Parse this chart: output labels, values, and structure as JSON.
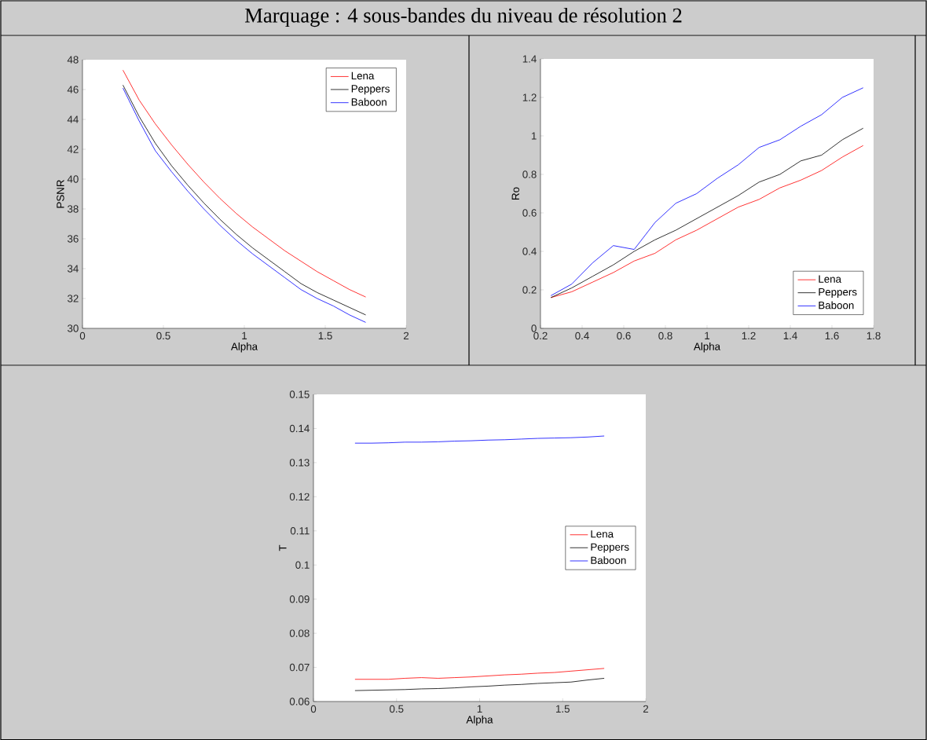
{
  "chart_data": [
    {
      "type": "line",
      "title": "Marquage : 4 sous-bandes du niveau de résolution 2",
      "xlabel": "Alpha",
      "ylabel": "PSNR",
      "x": [
        0.25,
        0.35,
        0.45,
        0.55,
        0.65,
        0.75,
        0.85,
        0.95,
        1.05,
        1.15,
        1.25,
        1.35,
        1.45,
        1.55,
        1.65,
        1.75
      ],
      "series": [
        {
          "name": "Lena",
          "color": "#ff0000",
          "values": [
            47.3,
            45.3,
            43.7,
            42.3,
            41.0,
            39.8,
            38.7,
            37.7,
            36.8,
            36.0,
            35.2,
            34.5,
            33.8,
            33.2,
            32.6,
            32.1
          ]
        },
        {
          "name": "Peppers",
          "color": "#000000",
          "values": [
            46.3,
            44.2,
            42.4,
            40.9,
            39.6,
            38.4,
            37.3,
            36.3,
            35.4,
            34.6,
            33.8,
            33.0,
            32.4,
            31.9,
            31.4,
            30.9
          ]
        },
        {
          "name": "Baboon",
          "color": "#0000ff",
          "values": [
            46.1,
            43.9,
            41.9,
            40.5,
            39.2,
            38.0,
            36.9,
            35.9,
            35.0,
            34.2,
            33.4,
            32.6,
            32.0,
            31.5,
            30.9,
            30.4
          ]
        }
      ],
      "xlim": [
        0,
        2
      ],
      "ylim": [
        30,
        48
      ],
      "xticks": [
        0,
        0.5,
        1,
        1.5,
        2
      ],
      "yticks": [
        30,
        32,
        34,
        36,
        38,
        40,
        42,
        44,
        46,
        48
      ],
      "legend": "top right"
    },
    {
      "type": "line",
      "xlabel": "Alpha",
      "ylabel": "Ro",
      "x": [
        0.25,
        0.35,
        0.45,
        0.55,
        0.65,
        0.75,
        0.85,
        0.95,
        1.05,
        1.15,
        1.25,
        1.35,
        1.45,
        1.55,
        1.65,
        1.75
      ],
      "series": [
        {
          "name": "Lena",
          "color": "#ff0000",
          "values": [
            0.16,
            0.19,
            0.24,
            0.29,
            0.35,
            0.39,
            0.46,
            0.51,
            0.57,
            0.63,
            0.67,
            0.73,
            0.77,
            0.82,
            0.89,
            0.95
          ]
        },
        {
          "name": "Peppers",
          "color": "#000000",
          "values": [
            0.16,
            0.21,
            0.27,
            0.33,
            0.4,
            0.46,
            0.51,
            0.57,
            0.63,
            0.69,
            0.76,
            0.8,
            0.87,
            0.9,
            0.98,
            1.04
          ]
        },
        {
          "name": "Baboon",
          "color": "#0000ff",
          "values": [
            0.17,
            0.23,
            0.34,
            0.43,
            0.41,
            0.55,
            0.65,
            0.7,
            0.78,
            0.85,
            0.94,
            0.98,
            1.05,
            1.11,
            1.2,
            1.25
          ]
        }
      ],
      "xlim": [
        0.2,
        1.8
      ],
      "ylim": [
        0,
        1.4
      ],
      "xticks": [
        0.2,
        0.4,
        0.6,
        0.8,
        1,
        1.2,
        1.4,
        1.6,
        1.8
      ],
      "yticks": [
        0,
        0.2,
        0.4,
        0.6,
        0.8,
        1,
        1.2,
        1.4
      ],
      "legend": "bottom right"
    },
    {
      "type": "line",
      "xlabel": "Alpha",
      "ylabel": "T",
      "x": [
        0.25,
        0.35,
        0.45,
        0.55,
        0.65,
        0.75,
        0.85,
        0.95,
        1.05,
        1.15,
        1.25,
        1.35,
        1.45,
        1.55,
        1.65,
        1.75
      ],
      "series": [
        {
          "name": "Lena",
          "color": "#ff0000",
          "values": [
            0.0665,
            0.0665,
            0.0665,
            0.0668,
            0.067,
            0.0668,
            0.067,
            0.0672,
            0.0675,
            0.0678,
            0.068,
            0.0683,
            0.0685,
            0.0689,
            0.0693,
            0.0697
          ]
        },
        {
          "name": "Peppers",
          "color": "#000000",
          "values": [
            0.0632,
            0.0633,
            0.0634,
            0.0635,
            0.0637,
            0.0638,
            0.064,
            0.0643,
            0.0645,
            0.0648,
            0.065,
            0.0653,
            0.0655,
            0.0657,
            0.0663,
            0.0668
          ]
        },
        {
          "name": "Baboon",
          "color": "#0000ff",
          "values": [
            0.1357,
            0.1357,
            0.1358,
            0.136,
            0.136,
            0.1361,
            0.1363,
            0.1364,
            0.1366,
            0.1367,
            0.1369,
            0.1371,
            0.1372,
            0.1373,
            0.1375,
            0.1378
          ]
        }
      ],
      "xlim": [
        0,
        2
      ],
      "ylim": [
        0.06,
        0.15
      ],
      "xticks": [
        0,
        0.5,
        1,
        1.5,
        2
      ],
      "yticks": [
        0.06,
        0.07,
        0.08,
        0.09,
        0.1,
        0.11,
        0.12,
        0.13,
        0.14,
        0.15
      ],
      "legend": "right"
    }
  ]
}
